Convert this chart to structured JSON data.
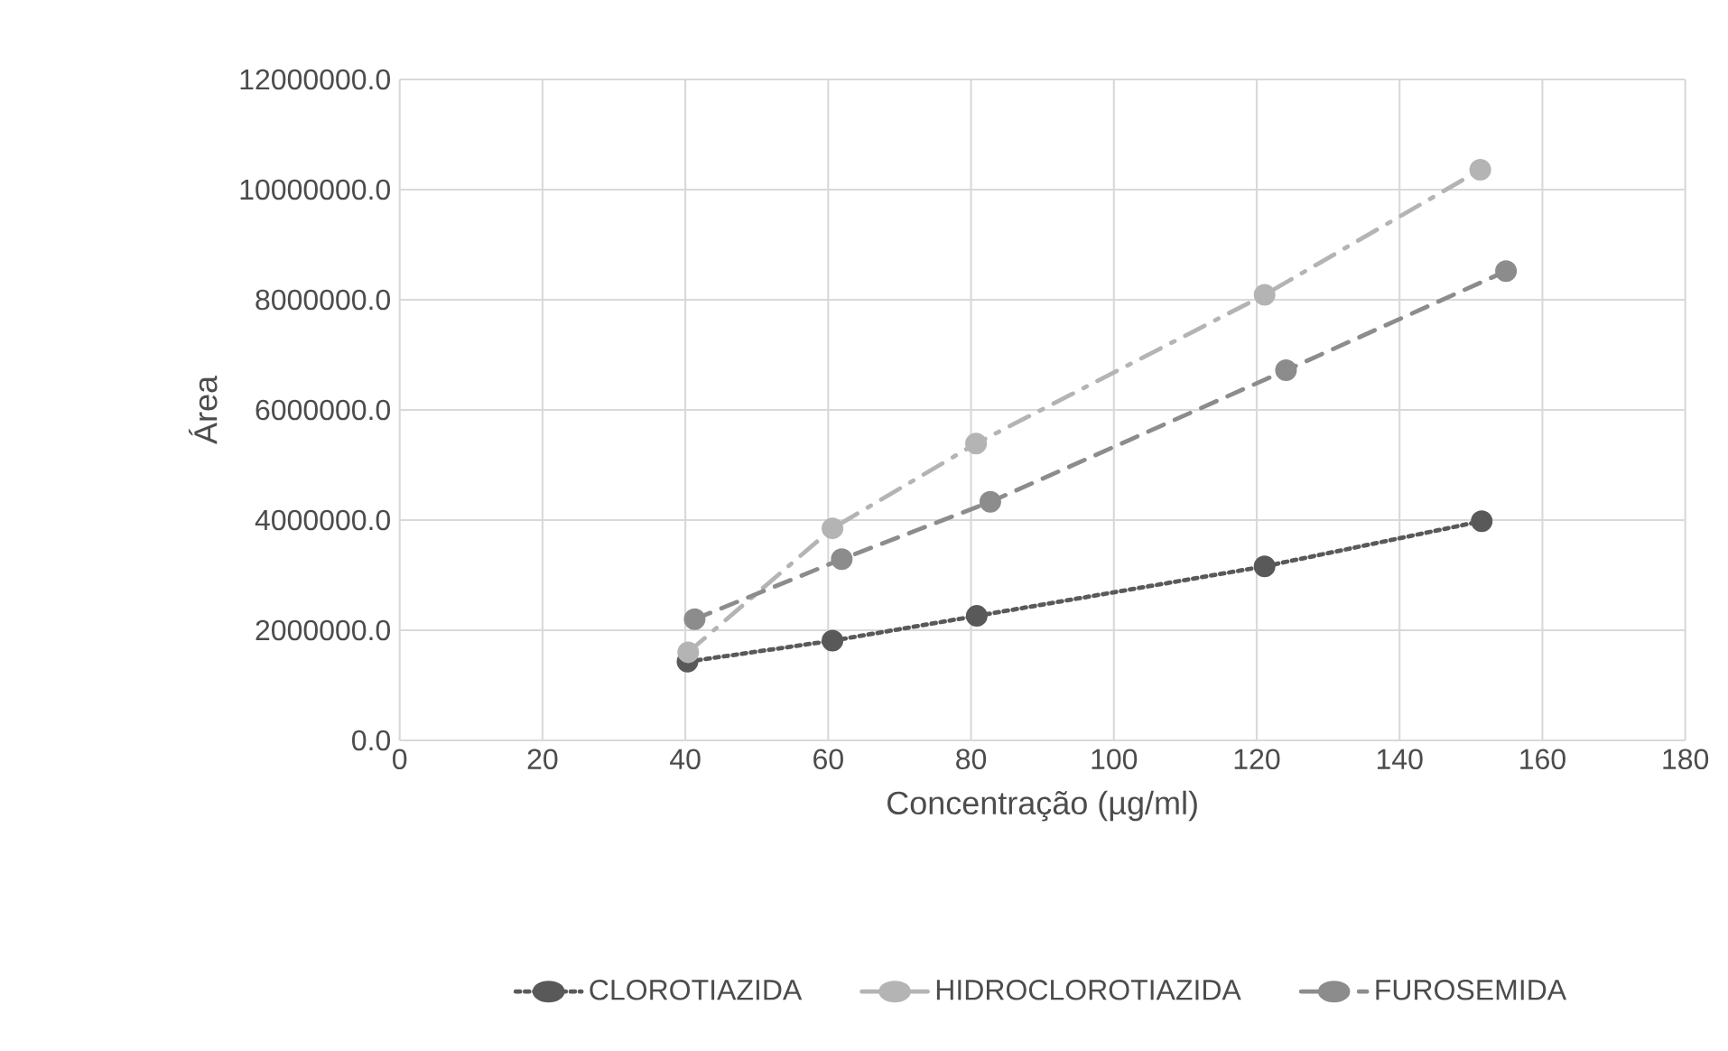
{
  "chart_data": {
    "type": "line",
    "xlabel": "Concentração (µg/ml)",
    "ylabel": "Área",
    "xlim": [
      0,
      180
    ],
    "xticks": [
      0,
      20,
      40,
      60,
      80,
      100,
      120,
      140,
      160,
      180
    ],
    "ylim": [
      0,
      12000000
    ],
    "yticks": [
      {
        "value": 0,
        "label": "0.0"
      },
      {
        "value": 2000000,
        "label": "2000000.0"
      },
      {
        "value": 4000000,
        "label": "4000000.0"
      },
      {
        "value": 6000000,
        "label": "6000000.0"
      },
      {
        "value": 8000000,
        "label": "8000000.0"
      },
      {
        "value": 10000000,
        "label": "10000000.0"
      },
      {
        "value": 12000000,
        "label": "12000000.0"
      }
    ],
    "grid": true,
    "legend": "bottom",
    "marker": "circle",
    "series": [
      {
        "name": "CLOROTIAZIDA",
        "color": "#595959",
        "line_style": "dotted",
        "x": [
          40.3,
          60.6,
          80.8,
          121.1,
          151.5
        ],
        "values": [
          1430000,
          1810000,
          2260000,
          3160000,
          3980000
        ]
      },
      {
        "name": "HIDROCLOROTIAZIDA",
        "color": "#b4b4b4",
        "line_style": "dashdot",
        "x": [
          40.4,
          60.6,
          80.7,
          121.1,
          151.3
        ],
        "values": [
          1600000,
          3850000,
          5390000,
          8090000,
          10360000
        ]
      },
      {
        "name": "FUROSEMIDA",
        "color": "#8c8c8c",
        "line_style": "dashed",
        "x": [
          41.3,
          61.9,
          82.7,
          124.1,
          154.9
        ],
        "values": [
          2200000,
          3290000,
          4330000,
          6720000,
          8520000
        ]
      }
    ]
  }
}
